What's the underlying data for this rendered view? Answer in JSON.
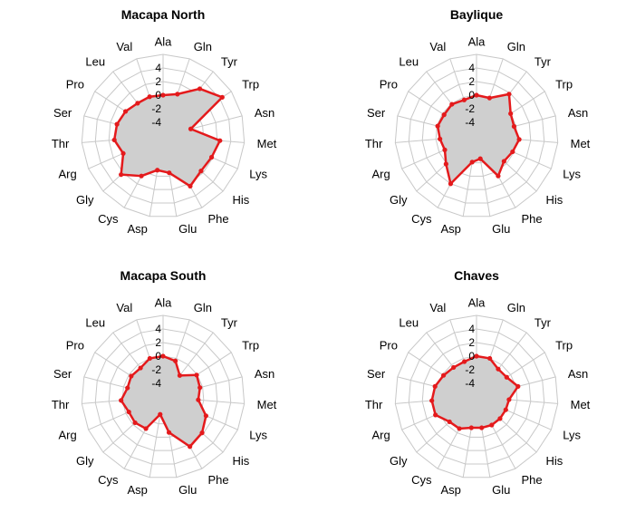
{
  "colors": {
    "series_line": "#e41a1c",
    "series_fill": "#cfcfcf",
    "grid": "#c8c8c8",
    "text": "#000000"
  },
  "chart_data": [
    {
      "type": "radar",
      "title": "Macapa North",
      "categories": [
        "Ala",
        "Gln",
        "Tyr",
        "Trp",
        "Asn",
        "Met",
        "Lys",
        "His",
        "Phe",
        "Glu",
        "Asp",
        "Cys",
        "Gly",
        "Arg",
        "Thr",
        "Ser",
        "Pro",
        "Leu",
        "Val"
      ],
      "ticks": [
        4,
        2,
        0,
        -2,
        -4
      ],
      "rlim": [
        -6,
        6
      ],
      "values": [
        0.0,
        0.5,
        2.8,
        4.4,
        -1.8,
        2.4,
        1.8,
        1.6,
        2.4,
        -0.5,
        -0.9,
        0.7,
        2.4,
        0.4,
        1.2,
        1.0,
        0.6,
        0.1,
        0.1
      ]
    },
    {
      "type": "radar",
      "title": "Baylique",
      "categories": [
        "Ala",
        "Gln",
        "Tyr",
        "Trp",
        "Asn",
        "Met",
        "Lys",
        "His",
        "Phe",
        "Glu",
        "Asp",
        "Cys",
        "Gly",
        "Arg",
        "Thr",
        "Ser",
        "Pro",
        "Leu",
        "Val"
      ],
      "ticks": [
        4,
        2,
        0,
        -2,
        -4
      ],
      "rlim": [
        -6,
        6
      ],
      "values": [
        0.0,
        -0.1,
        1.8,
        0.0,
        -0.3,
        0.3,
        -0.2,
        -0.5,
        0.7,
        -2.6,
        -2.1,
        2.0,
        0.1,
        -0.9,
        -0.6,
        -0.1,
        -0.3,
        -0.1,
        -0.4
      ]
    },
    {
      "type": "radar",
      "title": "Macapa South",
      "categories": [
        "Ala",
        "Gln",
        "Tyr",
        "Trp",
        "Asn",
        "Met",
        "Lys",
        "His",
        "Phe",
        "Glu",
        "Asp",
        "Cys",
        "Gly",
        "Arg",
        "Thr",
        "Ser",
        "Pro",
        "Leu",
        "Val"
      ],
      "ticks": [
        4,
        2,
        0,
        -2,
        -4
      ],
      "rlim": [
        -6,
        6
      ],
      "values": [
        0.0,
        -0.4,
        -2.0,
        -0.1,
        -0.4,
        -0.8,
        0.9,
        1.8,
        2.3,
        -0.7,
        -3.4,
        -0.7,
        -0.4,
        -0.5,
        0.2,
        -0.6,
        -0.4,
        -0.6,
        0.0
      ]
    },
    {
      "type": "radar",
      "title": "Chaves",
      "categories": [
        "Ala",
        "Gln",
        "Tyr",
        "Trp",
        "Asn",
        "Met",
        "Lys",
        "His",
        "Phe",
        "Glu",
        "Asp",
        "Cys",
        "Gly",
        "Arg",
        "Thr",
        "Ser",
        "Pro",
        "Leu",
        "Val"
      ],
      "ticks": [
        4,
        2,
        0,
        -2,
        -4
      ],
      "rlim": [
        -6,
        6
      ],
      "values": [
        0.0,
        0.0,
        -0.8,
        -0.7,
        0.3,
        -1.2,
        -1.3,
        -1.3,
        -1.3,
        -1.4,
        -1.4,
        -0.7,
        -0.6,
        0.6,
        0.6,
        0.3,
        -0.2,
        -0.5,
        -0.5
      ]
    }
  ]
}
